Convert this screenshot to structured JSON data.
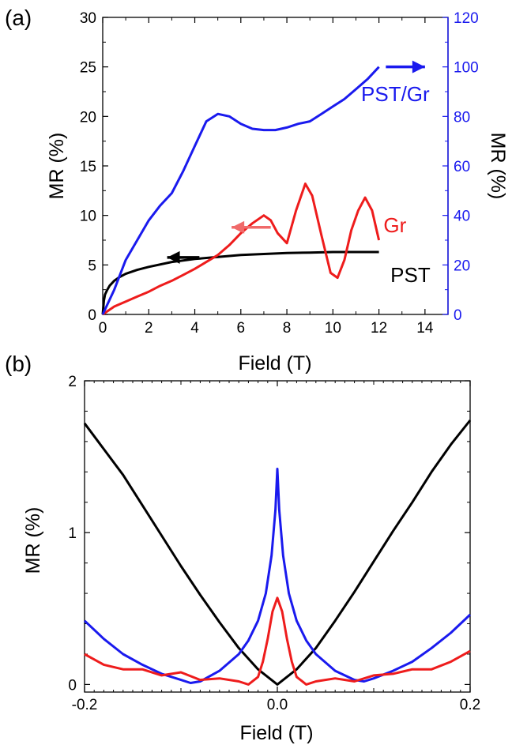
{
  "colors": {
    "black": "#000000",
    "blue": "#1a1aee",
    "red": "#ee1c1c",
    "red_arrow": "#f06a6a"
  },
  "chart_data": [
    {
      "panel": "(a)",
      "type": "line",
      "xlabel": "Field (T)",
      "ylabel": "MR (%)",
      "y2label": "MR (%)",
      "xlim": [
        0,
        15
      ],
      "ylim": [
        0,
        30
      ],
      "y2lim": [
        0,
        120
      ],
      "xticks": [
        0,
        2,
        4,
        6,
        8,
        10,
        12,
        14
      ],
      "yticks": [
        0,
        5,
        10,
        15,
        20,
        25,
        30
      ],
      "y2ticks": [
        0,
        20,
        40,
        60,
        80,
        100,
        120
      ],
      "series": [
        {
          "name": "PST",
          "axis": "left",
          "color": "#000000",
          "x": [
            0,
            0.05,
            0.1,
            0.2,
            0.3,
            0.5,
            0.75,
            1.0,
            1.5,
            2,
            3,
            4,
            5,
            6,
            7,
            8,
            9,
            10,
            11,
            12
          ],
          "y": [
            0,
            1.4,
            2.0,
            2.5,
            2.9,
            3.4,
            3.8,
            4.1,
            4.5,
            4.8,
            5.3,
            5.6,
            5.8,
            6.0,
            6.1,
            6.2,
            6.25,
            6.3,
            6.3,
            6.3
          ]
        },
        {
          "name": "Gr",
          "axis": "left",
          "color": "#ee1c1c",
          "x": [
            0,
            0.5,
            1,
            1.5,
            2,
            2.5,
            3,
            3.5,
            4,
            4.5,
            5,
            5.5,
            6,
            6.5,
            7,
            7.3,
            7.6,
            8.0,
            8.4,
            8.8,
            9.1,
            9.5,
            9.9,
            10.2,
            10.5,
            10.8,
            11.1,
            11.4,
            11.7,
            11.9,
            12.0
          ],
          "y": [
            0,
            0.8,
            1.3,
            1.8,
            2.3,
            2.9,
            3.4,
            4.0,
            4.6,
            5.3,
            6.0,
            7.0,
            8.2,
            9.2,
            10.0,
            9.5,
            8.2,
            7.2,
            10.5,
            13.2,
            12.0,
            8.0,
            4.2,
            3.7,
            5.5,
            8.5,
            10.5,
            11.8,
            10.5,
            8.5,
            7.5
          ]
        },
        {
          "name": "PST/Gr",
          "axis": "right",
          "color": "#1a1aee",
          "x": [
            0,
            0.5,
            1,
            1.5,
            2,
            2.5,
            3,
            3.5,
            4,
            4.5,
            5,
            5.5,
            6,
            6.5,
            7,
            7.5,
            8,
            8.5,
            9,
            9.5,
            10,
            10.5,
            11,
            11.5,
            12
          ],
          "y": [
            0,
            10,
            22,
            30,
            38,
            44,
            49,
            58,
            68,
            78,
            81,
            80,
            77,
            75,
            74.5,
            74.5,
            75.5,
            77,
            78,
            81,
            84,
            87,
            91,
            95,
            100
          ]
        }
      ],
      "annotations": [
        {
          "text": "PST/Gr",
          "color": "#1a1aee"
        },
        {
          "text": "Gr",
          "color": "#ee1c1c"
        },
        {
          "text": "PST",
          "color": "#000000"
        }
      ],
      "axis_arrows": [
        {
          "series": "PST/Gr",
          "points_to": "right"
        },
        {
          "series": "Gr",
          "points_to": "left"
        },
        {
          "series": "PST",
          "points_to": "left"
        }
      ],
      "grid": false
    },
    {
      "panel": "(b)",
      "type": "line",
      "xlabel": "Field (T)",
      "ylabel": "MR (%)",
      "xlim": [
        -0.2,
        0.2
      ],
      "ylim": [
        -0.05,
        2
      ],
      "xticks": [
        -0.2,
        0.0,
        0.2
      ],
      "xticklabels": [
        "-0.2",
        "0.0",
        "0.2"
      ],
      "yticks": [
        0,
        1,
        2
      ],
      "series": [
        {
          "name": "PST",
          "color": "#000000",
          "x": [
            -0.2,
            -0.18,
            -0.16,
            -0.14,
            -0.12,
            -0.1,
            -0.08,
            -0.06,
            -0.04,
            -0.02,
            0,
            0.02,
            0.04,
            0.06,
            0.08,
            0.1,
            0.12,
            0.14,
            0.16,
            0.18,
            0.2
          ],
          "y": [
            1.72,
            1.55,
            1.38,
            1.18,
            0.98,
            0.78,
            0.59,
            0.41,
            0.24,
            0.1,
            0.0,
            0.1,
            0.24,
            0.42,
            0.61,
            0.81,
            1.01,
            1.2,
            1.4,
            1.58,
            1.74
          ]
        },
        {
          "name": "PST/Gr",
          "color": "#1a1aee",
          "x": [
            -0.2,
            -0.18,
            -0.16,
            -0.14,
            -0.12,
            -0.1,
            -0.09,
            -0.08,
            -0.06,
            -0.04,
            -0.03,
            -0.02,
            -0.012,
            -0.006,
            -0.002,
            0,
            0.002,
            0.006,
            0.012,
            0.02,
            0.03,
            0.04,
            0.06,
            0.08,
            0.09,
            0.1,
            0.12,
            0.14,
            0.16,
            0.18,
            0.2
          ],
          "y": [
            0.42,
            0.3,
            0.2,
            0.13,
            0.07,
            0.03,
            0.01,
            0.02,
            0.09,
            0.2,
            0.29,
            0.42,
            0.6,
            0.85,
            1.15,
            1.42,
            1.15,
            0.85,
            0.6,
            0.42,
            0.29,
            0.2,
            0.09,
            0.03,
            0.02,
            0.04,
            0.09,
            0.15,
            0.24,
            0.34,
            0.46
          ]
        },
        {
          "name": "Gr",
          "color": "#ee1c1c",
          "x": [
            -0.2,
            -0.18,
            -0.16,
            -0.14,
            -0.12,
            -0.1,
            -0.08,
            -0.06,
            -0.04,
            -0.03,
            -0.02,
            -0.015,
            -0.01,
            -0.005,
            0,
            0.005,
            0.01,
            0.015,
            0.02,
            0.03,
            0.04,
            0.06,
            0.08,
            0.1,
            0.12,
            0.14,
            0.16,
            0.18,
            0.2
          ],
          "y": [
            0.2,
            0.13,
            0.1,
            0.1,
            0.06,
            0.08,
            0.03,
            0.04,
            0.02,
            0.0,
            0.05,
            0.15,
            0.3,
            0.48,
            0.57,
            0.48,
            0.3,
            0.15,
            0.05,
            0.0,
            0.02,
            0.04,
            0.02,
            0.06,
            0.07,
            0.1,
            0.1,
            0.15,
            0.22
          ]
        }
      ],
      "grid": false
    }
  ]
}
